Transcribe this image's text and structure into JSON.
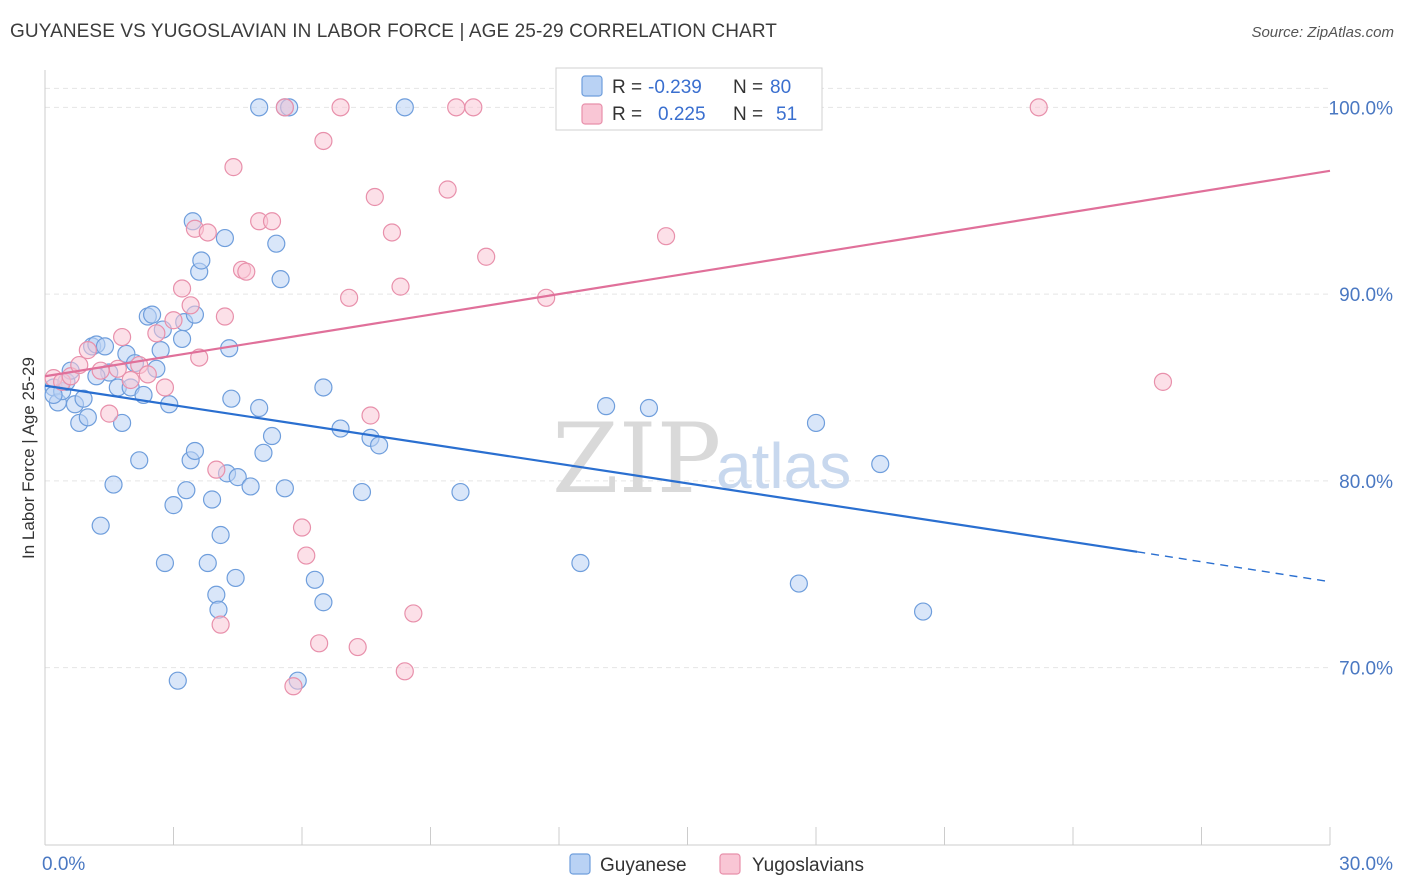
{
  "header": {
    "title": "GUYANESE VS YUGOSLAVIAN IN LABOR FORCE | AGE 25-29 CORRELATION CHART",
    "source": "Source: ZipAtlas.com"
  },
  "watermark": {
    "zip": "ZIP",
    "atlas": "atlas"
  },
  "legend": {
    "rows": [
      {
        "r_label": "R =",
        "r_value": "-0.239",
        "n_label": "N =",
        "n_value": "80"
      },
      {
        "r_label": "R =",
        "r_value": "0.225",
        "n_label": "N =",
        "n_value": "51"
      }
    ]
  },
  "colors": {
    "guyanese_fill": "#b9d2f4",
    "guyanese_stroke": "#6f9edc",
    "guyanese_line": "#2a6fd0",
    "yugo_fill": "#f9c6d5",
    "yugo_stroke": "#e890ab",
    "yugo_line": "#e0709a",
    "grid": "#e5e5e5",
    "tick_label": "#4a78c2"
  },
  "chart_data": {
    "type": "scatter",
    "title": "GUYANESE VS YUGOSLAVIAN IN LABOR FORCE | AGE 25-29 CORRELATION CHART",
    "xlabel": "",
    "ylabel": "In Labor Force | Age 25-29",
    "xlim": [
      0,
      30
    ],
    "ylim": [
      60.5,
      102
    ],
    "x_tick_labels": [
      "0.0%",
      "30.0%"
    ],
    "y_ticks": [
      70,
      80,
      90,
      100
    ],
    "y_tick_labels": [
      "70.0%",
      "80.0%",
      "90.0%",
      "100.0%"
    ],
    "grid": true,
    "legend_position": "top-center",
    "series": [
      {
        "name": "Guyanese",
        "r": -0.239,
        "n": 80,
        "trend": {
          "x": [
            0,
            25.5
          ],
          "y": [
            85.1,
            76.2
          ],
          "dashed_to": [
            30,
            74.6
          ]
        },
        "points": [
          [
            0.2,
            85.0
          ],
          [
            0.3,
            84.2
          ],
          [
            0.4,
            84.8
          ],
          [
            0.5,
            85.3
          ],
          [
            0.6,
            85.9
          ],
          [
            0.7,
            84.1
          ],
          [
            0.8,
            83.1
          ],
          [
            0.9,
            84.4
          ],
          [
            1.0,
            83.4
          ],
          [
            1.1,
            87.2
          ],
          [
            1.2,
            87.3
          ],
          [
            1.3,
            77.6
          ],
          [
            1.4,
            87.2
          ],
          [
            1.5,
            85.8
          ],
          [
            1.6,
            79.8
          ],
          [
            1.7,
            85.0
          ],
          [
            1.8,
            83.1
          ],
          [
            1.9,
            86.8
          ],
          [
            2.0,
            85.0
          ],
          [
            2.1,
            86.3
          ],
          [
            2.2,
            81.1
          ],
          [
            2.3,
            84.6
          ],
          [
            2.4,
            88.8
          ],
          [
            2.5,
            88.9
          ],
          [
            2.6,
            86.0
          ],
          [
            2.7,
            87.0
          ],
          [
            2.75,
            88.1
          ],
          [
            2.8,
            75.6
          ],
          [
            2.9,
            84.1
          ],
          [
            3.0,
            78.7
          ],
          [
            3.1,
            69.3
          ],
          [
            3.2,
            87.6
          ],
          [
            3.25,
            88.5
          ],
          [
            3.3,
            79.5
          ],
          [
            3.4,
            81.1
          ],
          [
            3.45,
            93.9
          ],
          [
            3.5,
            81.6
          ],
          [
            3.6,
            91.2
          ],
          [
            3.65,
            91.8
          ],
          [
            3.8,
            75.6
          ],
          [
            3.9,
            79.0
          ],
          [
            4.0,
            73.9
          ],
          [
            4.05,
            73.1
          ],
          [
            4.1,
            77.1
          ],
          [
            4.2,
            93.0
          ],
          [
            4.25,
            80.4
          ],
          [
            4.3,
            87.1
          ],
          [
            4.35,
            84.4
          ],
          [
            4.45,
            74.8
          ],
          [
            4.5,
            80.2
          ],
          [
            4.8,
            79.7
          ],
          [
            5.0,
            83.9
          ],
          [
            5.1,
            81.5
          ],
          [
            5.3,
            82.4
          ],
          [
            5.4,
            92.7
          ],
          [
            5.5,
            90.8
          ],
          [
            5.6,
            100.0
          ],
          [
            5.7,
            100.0
          ],
          [
            5.9,
            69.3
          ],
          [
            6.3,
            74.7
          ],
          [
            6.5,
            73.5
          ],
          [
            6.9,
            82.8
          ],
          [
            7.4,
            79.4
          ],
          [
            7.6,
            82.3
          ],
          [
            7.8,
            81.9
          ],
          [
            9.7,
            79.4
          ],
          [
            12.5,
            75.6
          ],
          [
            13.1,
            84.0
          ],
          [
            14.1,
            83.9
          ],
          [
            17.6,
            74.5
          ],
          [
            18.0,
            83.1
          ],
          [
            19.5,
            80.9
          ],
          [
            20.5,
            73.0
          ],
          [
            5.0,
            100.0
          ],
          [
            6.5,
            85.0
          ],
          [
            8.4,
            100.0
          ],
          [
            5.6,
            79.6
          ],
          [
            3.5,
            88.9
          ],
          [
            0.2,
            84.6
          ],
          [
            1.2,
            85.6
          ]
        ]
      },
      {
        "name": "Yugoslavians",
        "r": 0.225,
        "n": 51,
        "trend": {
          "x": [
            0,
            30
          ],
          "y": [
            85.6,
            96.6
          ]
        },
        "points": [
          [
            0.2,
            85.5
          ],
          [
            0.4,
            85.3
          ],
          [
            0.6,
            85.6
          ],
          [
            0.8,
            86.2
          ],
          [
            1.0,
            87.0
          ],
          [
            1.3,
            85.9
          ],
          [
            1.5,
            83.6
          ],
          [
            1.7,
            86.0
          ],
          [
            1.8,
            87.7
          ],
          [
            2.0,
            85.4
          ],
          [
            2.2,
            86.2
          ],
          [
            2.4,
            85.7
          ],
          [
            2.6,
            87.9
          ],
          [
            2.8,
            85.0
          ],
          [
            3.0,
            88.6
          ],
          [
            3.2,
            90.3
          ],
          [
            3.4,
            89.4
          ],
          [
            3.5,
            93.5
          ],
          [
            3.6,
            86.6
          ],
          [
            3.8,
            93.3
          ],
          [
            4.0,
            80.6
          ],
          [
            4.1,
            72.3
          ],
          [
            4.2,
            88.8
          ],
          [
            4.4,
            96.8
          ],
          [
            4.6,
            91.3
          ],
          [
            4.7,
            91.2
          ],
          [
            5.0,
            93.9
          ],
          [
            5.3,
            93.9
          ],
          [
            5.6,
            100.0
          ],
          [
            5.8,
            69.0
          ],
          [
            6.0,
            77.5
          ],
          [
            6.1,
            76.0
          ],
          [
            6.4,
            71.3
          ],
          [
            6.5,
            98.2
          ],
          [
            6.9,
            100.0
          ],
          [
            7.1,
            89.8
          ],
          [
            7.3,
            71.1
          ],
          [
            7.6,
            83.5
          ],
          [
            7.7,
            95.2
          ],
          [
            8.1,
            93.3
          ],
          [
            8.3,
            90.4
          ],
          [
            8.4,
            69.8
          ],
          [
            8.6,
            72.9
          ],
          [
            9.4,
            95.6
          ],
          [
            9.6,
            100.0
          ],
          [
            10.0,
            100.0
          ],
          [
            10.3,
            92.0
          ],
          [
            11.7,
            89.8
          ],
          [
            14.5,
            93.1
          ],
          [
            23.2,
            100.0
          ],
          [
            26.1,
            85.3
          ]
        ]
      }
    ]
  },
  "bottom_legend": {
    "items": [
      {
        "label": "Guyanese"
      },
      {
        "label": "Yugoslavians"
      }
    ]
  }
}
